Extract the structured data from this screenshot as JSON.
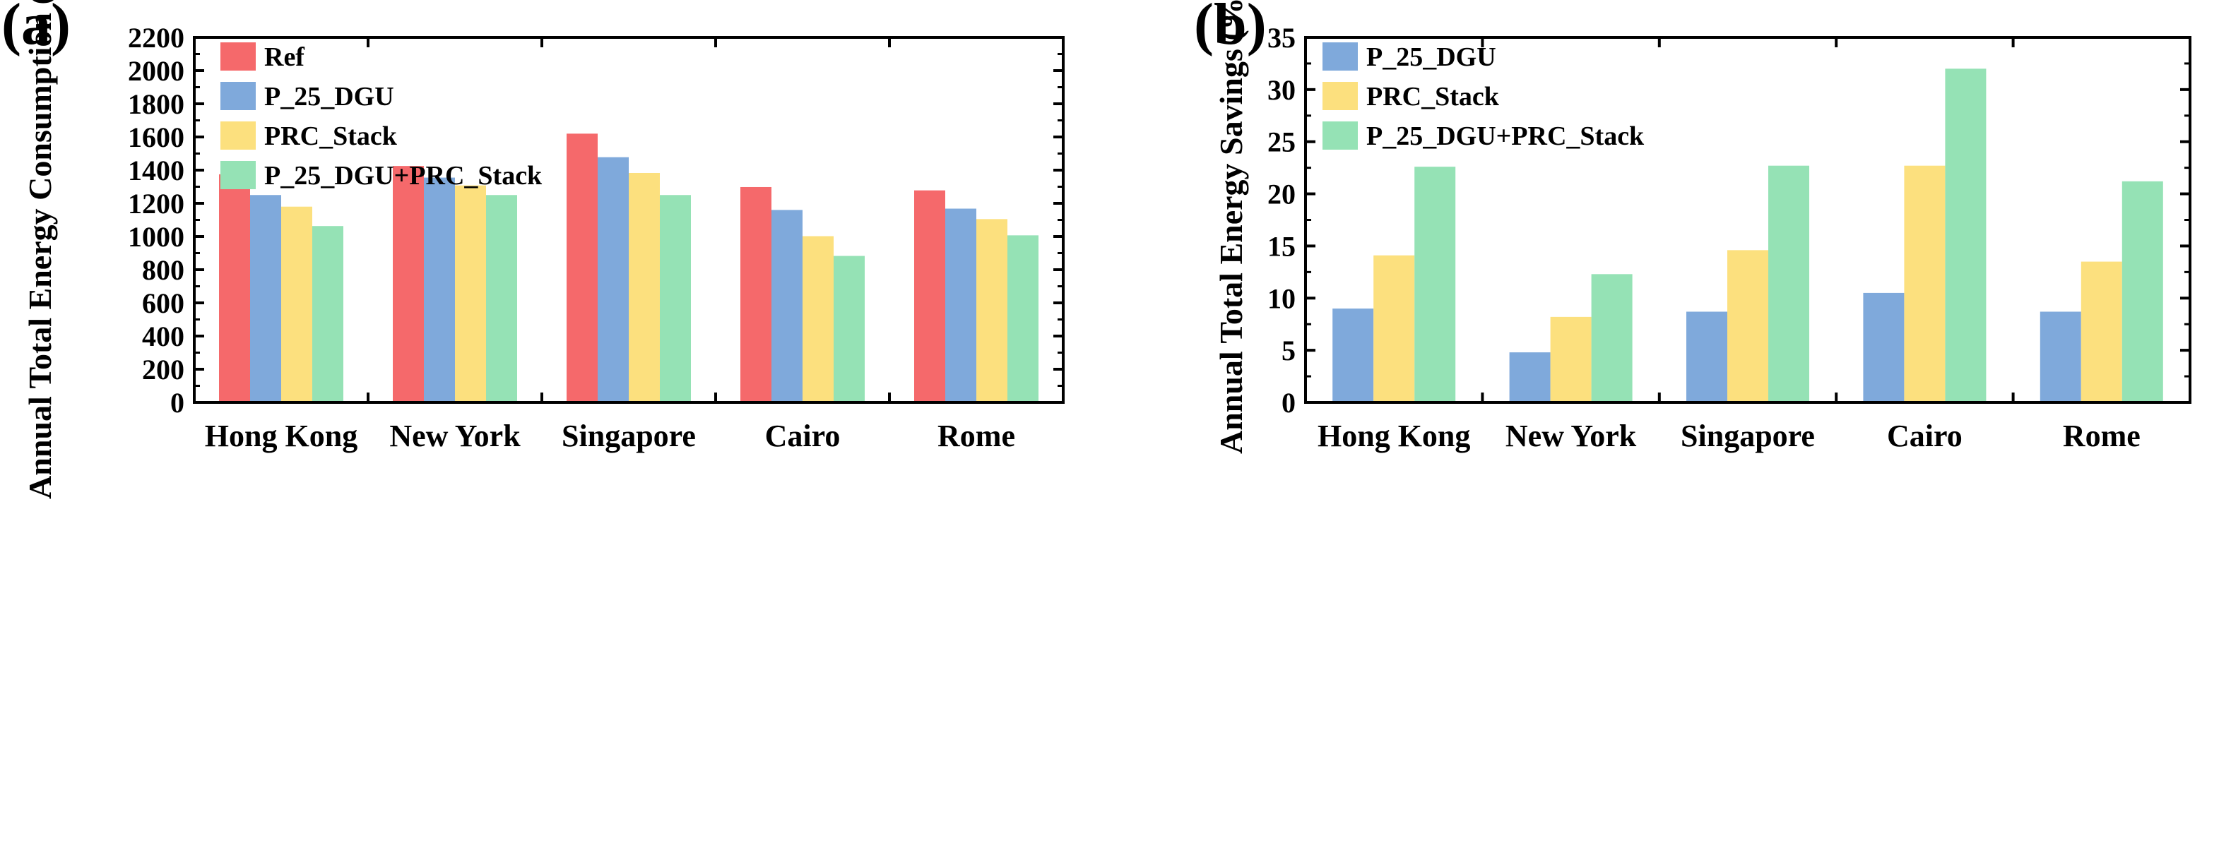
{
  "chart_data": [
    {
      "panel_label": "(a)",
      "type": "bar",
      "categories": [
        "Hong Kong",
        "New York",
        "Singapore",
        "Cairo",
        "Rome"
      ],
      "ylabel": "Annual Total Energy Consumption (GJ)",
      "xlabel": "",
      "ylim": [
        0,
        2200
      ],
      "yticks": [
        0,
        200,
        400,
        600,
        800,
        1000,
        1200,
        1400,
        1600,
        1800,
        2000,
        2200
      ],
      "legend_position": "top-left",
      "grid": false,
      "series": [
        {
          "name": "Ref",
          "color": "#f5696b",
          "values": [
            1375,
            1425,
            1620,
            1298,
            1278
          ]
        },
        {
          "name": "P_25_DGU",
          "color": "#7fa9db",
          "values": [
            1250,
            1355,
            1478,
            1160,
            1168
          ]
        },
        {
          "name": "PRC_Stack",
          "color": "#fce07e",
          "values": [
            1180,
            1308,
            1383,
            1002,
            1105
          ]
        },
        {
          "name": "P_25_DGU+PRC_Stack",
          "color": "#95e2b5",
          "values": [
            1063,
            1250,
            1250,
            883,
            1007
          ]
        }
      ]
    },
    {
      "panel_label": "(b)",
      "type": "bar",
      "categories": [
        "Hong Kong",
        "New York",
        "Singapore",
        "Cairo",
        "Rome"
      ],
      "ylabel": "Annual Total Energy Savings (%)",
      "xlabel": "",
      "ylim": [
        0,
        35
      ],
      "yticks": [
        0,
        5,
        10,
        15,
        20,
        25,
        30,
        35
      ],
      "legend_position": "top-left",
      "grid": false,
      "series": [
        {
          "name": "P_25_DGU",
          "color": "#7fa9db",
          "values": [
            9.0,
            4.8,
            8.7,
            10.5,
            8.7
          ]
        },
        {
          "name": "PRC_Stack",
          "color": "#fce07e",
          "values": [
            14.1,
            8.2,
            14.6,
            22.7,
            13.5
          ]
        },
        {
          "name": "P_25_DGU+PRC_Stack",
          "color": "#95e2b5",
          "values": [
            22.6,
            12.3,
            22.7,
            32.0,
            21.2
          ]
        }
      ]
    }
  ]
}
